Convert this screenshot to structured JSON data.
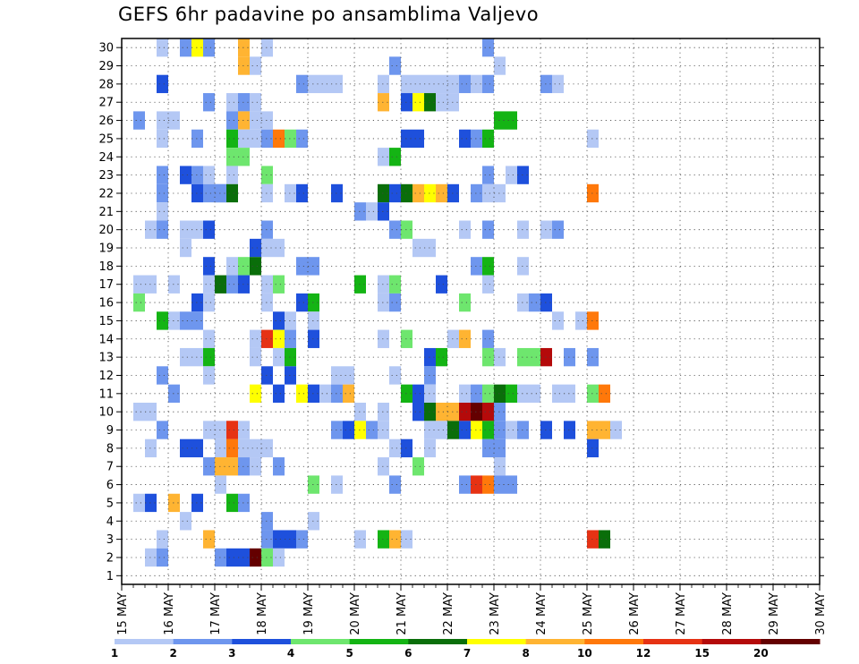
{
  "chart_data": {
    "type": "heatmap",
    "title": "GEFS 6hr padavine po ansamblima Valjevo",
    "xlabel": "",
    "ylabel": "",
    "x_tick_labels": [
      "15 MAY",
      "16 MAY",
      "17 MAY",
      "18 MAY",
      "19 MAY",
      "20 MAY",
      "21 MAY",
      "22 MAY",
      "23 MAY",
      "24 MAY",
      "25 MAY",
      "26 MAY",
      "27 MAY",
      "28 MAY",
      "29 MAY",
      "30 MAY"
    ],
    "y_tick_labels": [
      "1",
      "2",
      "3",
      "4",
      "5",
      "6",
      "7",
      "8",
      "9",
      "10",
      "11",
      "12",
      "13",
      "14",
      "15",
      "16",
      "17",
      "18",
      "19",
      "20",
      "21",
      "22",
      "23",
      "24",
      "25",
      "26",
      "27",
      "28",
      "29",
      "30"
    ],
    "x_range": [
      0,
      60
    ],
    "y_range": [
      1,
      30
    ],
    "grid": true,
    "colorbar": {
      "levels": [
        "1",
        "2",
        "3",
        "4",
        "5",
        "6",
        "7",
        "8",
        "10",
        "12",
        "15",
        "20"
      ],
      "colors": [
        "#b4c8f5",
        "#6e96ee",
        "#1e50dc",
        "#6ee66e",
        "#14b414",
        "#0a6e0a",
        "#ffff00",
        "#ffb432",
        "#ff780a",
        "#e63214",
        "#b40a0a",
        "#640000"
      ],
      "placement": "bottom"
    },
    "cells": [
      [
        3,
        30,
        1
      ],
      [
        5,
        30,
        2
      ],
      [
        6,
        30,
        7
      ],
      [
        7,
        30,
        2
      ],
      [
        10,
        30,
        8
      ],
      [
        12,
        30,
        1
      ],
      [
        31,
        30,
        2
      ],
      [
        10,
        29,
        8
      ],
      [
        11,
        29,
        1
      ],
      [
        23,
        29,
        2
      ],
      [
        32,
        29,
        1
      ],
      [
        3,
        28,
        3
      ],
      [
        15,
        28,
        2
      ],
      [
        16,
        28,
        1
      ],
      [
        17,
        28,
        1
      ],
      [
        18,
        28,
        1
      ],
      [
        22,
        28,
        1
      ],
      [
        24,
        28,
        1
      ],
      [
        25,
        28,
        1
      ],
      [
        26,
        28,
        1
      ],
      [
        27,
        28,
        1
      ],
      [
        28,
        28,
        1
      ],
      [
        29,
        28,
        2
      ],
      [
        30,
        28,
        1
      ],
      [
        31,
        28,
        2
      ],
      [
        36,
        28,
        2
      ],
      [
        37,
        28,
        1
      ],
      [
        7,
        27,
        2
      ],
      [
        9,
        27,
        1
      ],
      [
        10,
        27,
        2
      ],
      [
        11,
        27,
        1
      ],
      [
        22,
        27,
        8
      ],
      [
        24,
        27,
        3
      ],
      [
        25,
        27,
        7
      ],
      [
        26,
        27,
        6
      ],
      [
        27,
        27,
        1
      ],
      [
        28,
        27,
        1
      ],
      [
        1,
        26,
        2
      ],
      [
        3,
        26,
        1
      ],
      [
        4,
        26,
        1
      ],
      [
        9,
        26,
        2
      ],
      [
        10,
        26,
        8
      ],
      [
        11,
        26,
        1
      ],
      [
        12,
        26,
        1
      ],
      [
        32,
        26,
        5
      ],
      [
        33,
        26,
        5
      ],
      [
        3,
        25,
        1
      ],
      [
        6,
        25,
        2
      ],
      [
        9,
        25,
        5
      ],
      [
        10,
        25,
        1
      ],
      [
        11,
        25,
        1
      ],
      [
        12,
        25,
        2
      ],
      [
        13,
        25,
        9
      ],
      [
        14,
        25,
        4
      ],
      [
        15,
        25,
        2
      ],
      [
        24,
        25,
        3
      ],
      [
        25,
        25,
        3
      ],
      [
        29,
        25,
        3
      ],
      [
        30,
        25,
        2
      ],
      [
        31,
        25,
        5
      ],
      [
        40,
        25,
        1
      ],
      [
        9,
        24,
        4
      ],
      [
        10,
        24,
        4
      ],
      [
        22,
        24,
        1
      ],
      [
        23,
        24,
        5
      ],
      [
        3,
        23,
        2
      ],
      [
        5,
        23,
        3
      ],
      [
        6,
        23,
        2
      ],
      [
        7,
        23,
        1
      ],
      [
        9,
        23,
        1
      ],
      [
        12,
        23,
        4
      ],
      [
        31,
        23,
        2
      ],
      [
        33,
        23,
        1
      ],
      [
        34,
        23,
        3
      ],
      [
        3,
        22,
        2
      ],
      [
        6,
        22,
        3
      ],
      [
        7,
        22,
        2
      ],
      [
        8,
        22,
        2
      ],
      [
        8,
        22,
        2
      ],
      [
        9,
        22,
        6
      ],
      [
        12,
        22,
        1
      ],
      [
        14,
        22,
        1
      ],
      [
        15,
        22,
        3
      ],
      [
        18,
        22,
        3
      ],
      [
        22,
        22,
        6
      ],
      [
        23,
        22,
        3
      ],
      [
        24,
        22,
        6
      ],
      [
        25,
        22,
        8
      ],
      [
        26,
        22,
        7
      ],
      [
        27,
        22,
        8
      ],
      [
        28,
        22,
        3
      ],
      [
        30,
        22,
        2
      ],
      [
        31,
        22,
        1
      ],
      [
        32,
        22,
        1
      ],
      [
        40,
        22,
        9
      ],
      [
        3,
        21,
        1
      ],
      [
        20,
        21,
        2
      ],
      [
        21,
        21,
        1
      ],
      [
        22,
        21,
        3
      ],
      [
        2,
        20,
        1
      ],
      [
        3,
        20,
        2
      ],
      [
        5,
        20,
        1
      ],
      [
        6,
        20,
        1
      ],
      [
        7,
        20,
        3
      ],
      [
        12,
        20,
        2
      ],
      [
        23,
        20,
        2
      ],
      [
        24,
        20,
        4
      ],
      [
        29,
        20,
        1
      ],
      [
        31,
        20,
        2
      ],
      [
        34,
        20,
        1
      ],
      [
        36,
        20,
        1
      ],
      [
        37,
        20,
        2
      ],
      [
        5,
        19,
        1
      ],
      [
        11,
        19,
        3
      ],
      [
        12,
        19,
        1
      ],
      [
        13,
        19,
        1
      ],
      [
        25,
        19,
        1
      ],
      [
        26,
        19,
        1
      ],
      [
        7,
        18,
        3
      ],
      [
        9,
        18,
        1
      ],
      [
        10,
        18,
        4
      ],
      [
        11,
        18,
        6
      ],
      [
        15,
        18,
        2
      ],
      [
        16,
        18,
        2
      ],
      [
        30,
        18,
        2
      ],
      [
        31,
        18,
        5
      ],
      [
        34,
        18,
        1
      ],
      [
        1,
        17,
        1
      ],
      [
        2,
        17,
        1
      ],
      [
        4,
        17,
        1
      ],
      [
        7,
        17,
        1
      ],
      [
        8,
        17,
        6
      ],
      [
        9,
        17,
        2
      ],
      [
        10,
        17,
        3
      ],
      [
        12,
        17,
        1
      ],
      [
        13,
        17,
        4
      ],
      [
        20,
        17,
        5
      ],
      [
        22,
        17,
        1
      ],
      [
        23,
        17,
        4
      ],
      [
        27,
        17,
        3
      ],
      [
        31,
        17,
        1
      ],
      [
        1,
        16,
        4
      ],
      [
        6,
        16,
        3
      ],
      [
        7,
        16,
        1
      ],
      [
        12,
        16,
        1
      ],
      [
        15,
        16,
        3
      ],
      [
        16,
        16,
        5
      ],
      [
        22,
        16,
        1
      ],
      [
        23,
        16,
        2
      ],
      [
        29,
        16,
        4
      ],
      [
        34,
        16,
        1
      ],
      [
        35,
        16,
        2
      ],
      [
        36,
        16,
        3
      ],
      [
        3,
        15,
        5
      ],
      [
        4,
        15,
        1
      ],
      [
        5,
        15,
        2
      ],
      [
        6,
        15,
        2
      ],
      [
        13,
        15,
        3
      ],
      [
        14,
        15,
        1
      ],
      [
        16,
        15,
        1
      ],
      [
        37,
        15,
        1
      ],
      [
        39,
        15,
        1
      ],
      [
        40,
        15,
        9
      ],
      [
        7,
        14,
        1
      ],
      [
        11,
        14,
        1
      ],
      [
        12,
        14,
        10
      ],
      [
        13,
        14,
        7
      ],
      [
        14,
        14,
        2
      ],
      [
        16,
        14,
        3
      ],
      [
        22,
        14,
        1
      ],
      [
        24,
        14,
        4
      ],
      [
        28,
        14,
        1
      ],
      [
        29,
        14,
        8
      ],
      [
        31,
        14,
        2
      ],
      [
        5,
        13,
        1
      ],
      [
        6,
        13,
        1
      ],
      [
        7,
        13,
        5
      ],
      [
        11,
        13,
        1
      ],
      [
        13,
        13,
        1
      ],
      [
        14,
        13,
        5
      ],
      [
        26,
        13,
        3
      ],
      [
        27,
        13,
        5
      ],
      [
        31,
        13,
        4
      ],
      [
        32,
        13,
        1
      ],
      [
        34,
        13,
        4
      ],
      [
        35,
        13,
        4
      ],
      [
        36,
        13,
        11
      ],
      [
        38,
        13,
        2
      ],
      [
        40,
        13,
        2
      ],
      [
        3,
        12,
        2
      ],
      [
        7,
        12,
        1
      ],
      [
        12,
        12,
        3
      ],
      [
        14,
        12,
        3
      ],
      [
        18,
        12,
        1
      ],
      [
        19,
        12,
        1
      ],
      [
        23,
        12,
        1
      ],
      [
        26,
        12,
        2
      ],
      [
        4,
        11,
        2
      ],
      [
        11,
        11,
        7
      ],
      [
        13,
        11,
        3
      ],
      [
        15,
        11,
        7
      ],
      [
        16,
        11,
        3
      ],
      [
        17,
        11,
        1
      ],
      [
        18,
        11,
        2
      ],
      [
        19,
        11,
        8
      ],
      [
        24,
        11,
        5
      ],
      [
        25,
        11,
        3
      ],
      [
        26,
        11,
        1
      ],
      [
        29,
        11,
        1
      ],
      [
        30,
        11,
        2
      ],
      [
        31,
        11,
        4
      ],
      [
        32,
        11,
        6
      ],
      [
        33,
        11,
        5
      ],
      [
        34,
        11,
        1
      ],
      [
        35,
        11,
        1
      ],
      [
        37,
        11,
        1
      ],
      [
        38,
        11,
        1
      ],
      [
        40,
        11,
        4
      ],
      [
        41,
        11,
        9
      ],
      [
        1,
        10,
        1
      ],
      [
        2,
        10,
        1
      ],
      [
        20,
        10,
        1
      ],
      [
        22,
        10,
        1
      ],
      [
        25,
        10,
        3
      ],
      [
        26,
        10,
        6
      ],
      [
        27,
        10,
        8
      ],
      [
        28,
        10,
        8
      ],
      [
        29,
        10,
        11
      ],
      [
        30,
        10,
        12
      ],
      [
        31,
        10,
        11
      ],
      [
        32,
        10,
        2
      ],
      [
        3,
        9,
        2
      ],
      [
        7,
        9,
        1
      ],
      [
        8,
        9,
        1
      ],
      [
        9,
        9,
        10
      ],
      [
        9,
        9,
        10
      ],
      [
        10,
        9,
        1
      ],
      [
        18,
        9,
        2
      ],
      [
        19,
        9,
        3
      ],
      [
        20,
        9,
        7
      ],
      [
        21,
        9,
        2
      ],
      [
        22,
        9,
        1
      ],
      [
        26,
        9,
        1
      ],
      [
        27,
        9,
        1
      ],
      [
        28,
        9,
        6
      ],
      [
        29,
        9,
        3
      ],
      [
        30,
        9,
        7
      ],
      [
        31,
        9,
        5
      ],
      [
        32,
        9,
        2
      ],
      [
        33,
        9,
        1
      ],
      [
        34,
        9,
        2
      ],
      [
        36,
        9,
        3
      ],
      [
        38,
        9,
        3
      ],
      [
        40,
        9,
        8
      ],
      [
        41,
        9,
        8
      ],
      [
        42,
        9,
        1
      ],
      [
        2,
        8,
        1
      ],
      [
        5,
        8,
        3
      ],
      [
        6,
        8,
        3
      ],
      [
        8,
        8,
        1
      ],
      [
        9,
        8,
        9
      ],
      [
        10,
        8,
        1
      ],
      [
        11,
        8,
        1
      ],
      [
        12,
        8,
        1
      ],
      [
        23,
        8,
        1
      ],
      [
        24,
        8,
        3
      ],
      [
        26,
        8,
        1
      ],
      [
        31,
        8,
        2
      ],
      [
        32,
        8,
        2
      ],
      [
        40,
        8,
        3
      ],
      [
        7,
        7,
        2
      ],
      [
        8,
        7,
        8
      ],
      [
        9,
        7,
        8
      ],
      [
        10,
        7,
        2
      ],
      [
        11,
        7,
        1
      ],
      [
        13,
        7,
        2
      ],
      [
        22,
        7,
        1
      ],
      [
        25,
        7,
        4
      ],
      [
        32,
        7,
        1
      ],
      [
        8,
        6,
        1
      ],
      [
        16,
        6,
        4
      ],
      [
        18,
        6,
        1
      ],
      [
        23,
        6,
        2
      ],
      [
        29,
        6,
        2
      ],
      [
        30,
        6,
        10
      ],
      [
        31,
        6,
        9
      ],
      [
        32,
        6,
        2
      ],
      [
        33,
        6,
        2
      ],
      [
        1,
        5,
        1
      ],
      [
        2,
        5,
        3
      ],
      [
        4,
        5,
        8
      ],
      [
        6,
        5,
        3
      ],
      [
        9,
        5,
        5
      ],
      [
        10,
        5,
        2
      ],
      [
        5,
        4,
        1
      ],
      [
        12,
        4,
        2
      ],
      [
        16,
        4,
        1
      ],
      [
        3,
        3,
        1
      ],
      [
        7,
        3,
        8
      ],
      [
        12,
        3,
        2
      ],
      [
        13,
        3,
        3
      ],
      [
        14,
        3,
        3
      ],
      [
        15,
        3,
        2
      ],
      [
        20,
        3,
        1
      ],
      [
        22,
        3,
        5
      ],
      [
        23,
        3,
        8
      ],
      [
        24,
        3,
        1
      ],
      [
        40,
        3,
        10
      ],
      [
        41,
        3,
        6
      ],
      [
        2,
        2,
        1
      ],
      [
        3,
        2,
        2
      ],
      [
        8,
        2,
        2
      ],
      [
        9,
        2,
        3
      ],
      [
        10,
        2,
        3
      ],
      [
        11,
        2,
        12
      ],
      [
        12,
        2,
        4
      ],
      [
        13,
        2,
        1
      ]
    ]
  }
}
